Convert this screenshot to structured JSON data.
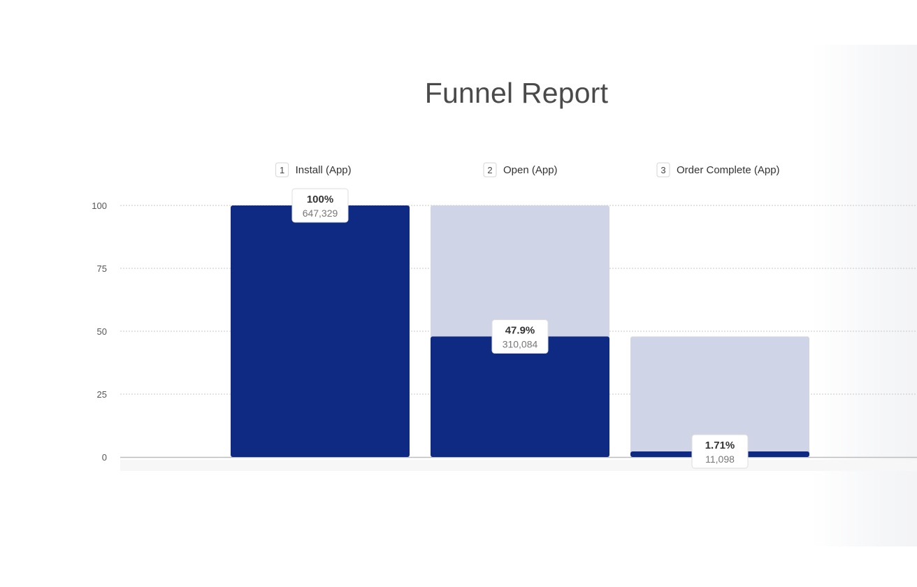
{
  "title": "Funnel Report",
  "chart_data": {
    "type": "bar",
    "title": "Funnel Report",
    "xlabel": "",
    "ylabel": "",
    "ylim": [
      0,
      100
    ],
    "yticks": [
      0,
      25,
      50,
      75,
      100
    ],
    "grid": true,
    "steps": [
      {
        "number": "1",
        "label": "Install (App)",
        "percent": 100,
        "percent_label": "100%",
        "count": "647,329",
        "previous_percent": 100
      },
      {
        "number": "2",
        "label": "Open (App)",
        "percent": 47.9,
        "percent_label": "47.9%",
        "count": "310,084",
        "previous_percent": 100
      },
      {
        "number": "3",
        "label": "Order Complete (App)",
        "percent": 1.71,
        "percent_label": "1.71%",
        "count": "11,098",
        "previous_percent": 47.9
      }
    ],
    "colors": {
      "conversion": "#0e2a83",
      "dropoff": "#cfd5e6",
      "grid": "#c8c8c8",
      "axis": "#bdbdbd"
    }
  }
}
